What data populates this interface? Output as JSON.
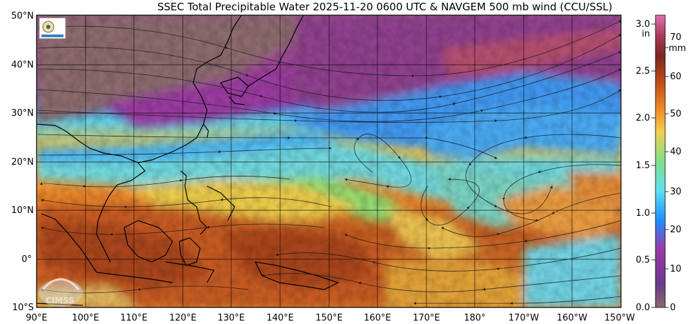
{
  "title": "SSEC Total Precipitable Water  2025-11-20 0600 UTC & NAVGEM 500 mb wind (CCU/SSL)",
  "logo_text": "CIMSS",
  "lat_labels": [
    "50°N",
    "40°N",
    "30°N",
    "20°N",
    "10°N",
    "0°",
    "10°S"
  ],
  "lon_labels": [
    "90°E",
    "100°E",
    "110°E",
    "120°E",
    "130°E",
    "140°E",
    "150°E",
    "160°E",
    "170°E",
    "180°",
    "170°W",
    "160°W",
    "150°W"
  ],
  "colorbar": {
    "inch_unit": "in",
    "inch_ticks": [
      "3.0",
      "2.5",
      "2.0",
      "1.5",
      "1.0",
      "0.5",
      "0.0"
    ],
    "mm_ticks": [
      "70",
      "60",
      "50",
      "40",
      "30",
      "20",
      "10",
      "0"
    ],
    "mm_unit": "mm",
    "stops": [
      "#8a6a6a",
      "#6a3a8a",
      "#9a3aa8",
      "#1e90ff",
      "#5fe0f0",
      "#7fe08a",
      "#f0d050",
      "#f08a28",
      "#b84818",
      "#7a2820",
      "#a83a5a",
      "#e070b0"
    ]
  },
  "colors": {
    "dry_purple": "#9e4a86",
    "mauve": "#8c6b6e",
    "blue": "#47a8f0",
    "cyan": "#6fd8e8",
    "green": "#8fd870",
    "yellow": "#e8c848",
    "orange": "#ea8a2c",
    "dark_orange": "#b8501e",
    "coast": "#000000"
  }
}
